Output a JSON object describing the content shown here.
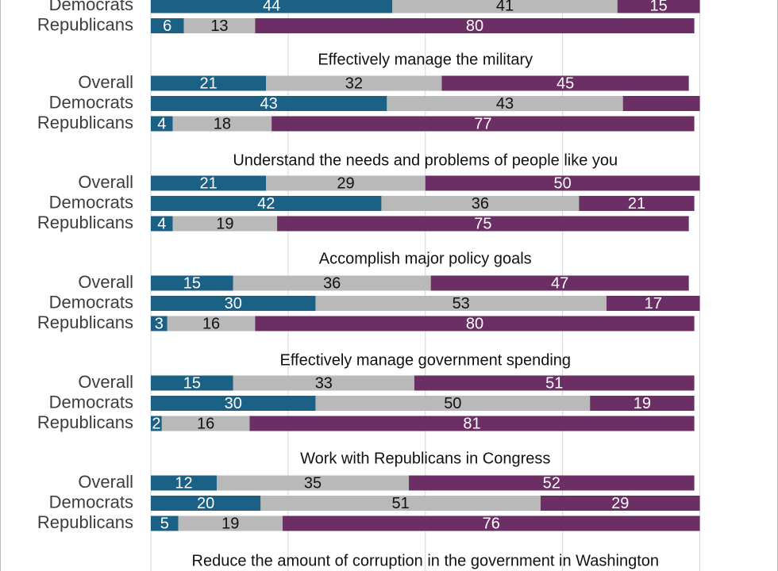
{
  "chart_data": {
    "type": "bar",
    "orientation": "horizontal",
    "stacked": true,
    "xlim": [
      0,
      100
    ],
    "grid": true,
    "legend": "none",
    "series_colors": [
      "#1b6085",
      "#b9b9b9",
      "#6b2f66"
    ],
    "value_label_colors": [
      "#ffffff",
      "#111111",
      "#ffffff"
    ],
    "row_labels": [
      "Overall",
      "Democrats",
      "Republicans"
    ],
    "groups": [
      {
        "title": "",
        "rows": [
          {
            "label": "Democrats",
            "values": [
              44,
              41,
              15
            ]
          },
          {
            "label": "Republicans",
            "values": [
              6,
              13,
              80
            ]
          }
        ]
      },
      {
        "title": "Effectively manage the military",
        "rows": [
          {
            "label": "Overall",
            "values": [
              21,
              32,
              45
            ]
          },
          {
            "label": "Democrats",
            "values": [
              43,
              43,
              14
            ]
          },
          {
            "label": "Republicans",
            "values": [
              4,
              18,
              77
            ]
          }
        ]
      },
      {
        "title": "Understand the needs and problems of people like you",
        "rows": [
          {
            "label": "Overall",
            "values": [
              21,
              29,
              50
            ]
          },
          {
            "label": "Democrats",
            "values": [
              42,
              36,
              21
            ]
          },
          {
            "label": "Republicans",
            "values": [
              4,
              19,
              75
            ]
          }
        ]
      },
      {
        "title": "Accomplish major policy goals",
        "rows": [
          {
            "label": "Overall",
            "values": [
              15,
              36,
              47
            ]
          },
          {
            "label": "Democrats",
            "values": [
              30,
              53,
              17
            ]
          },
          {
            "label": "Republicans",
            "values": [
              3,
              16,
              80
            ]
          }
        ]
      },
      {
        "title": "Effectively manage government spending",
        "rows": [
          {
            "label": "Overall",
            "values": [
              15,
              33,
              51
            ]
          },
          {
            "label": "Democrats",
            "values": [
              30,
              50,
              19
            ]
          },
          {
            "label": "Republicans",
            "values": [
              2,
              16,
              81
            ]
          }
        ]
      },
      {
        "title": "Work with Republicans in Congress",
        "rows": [
          {
            "label": "Overall",
            "values": [
              12,
              35,
              52
            ]
          },
          {
            "label": "Democrats",
            "values": [
              20,
              51,
              29
            ]
          },
          {
            "label": "Republicans",
            "values": [
              5,
              19,
              76
            ]
          }
        ]
      },
      {
        "title": "Reduce the amount of corruption in the government in Washington",
        "rows": []
      }
    ],
    "hidden_labels": [
      {
        "group": 1,
        "row": 1,
        "segment": 2
      }
    ]
  }
}
